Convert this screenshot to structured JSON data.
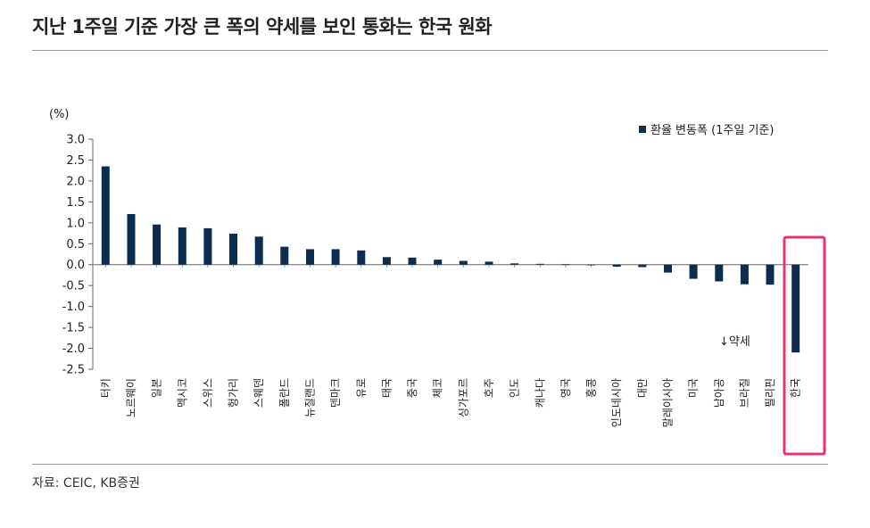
{
  "title": "지난 1주일 기준 가장 큰 폭의 약세를 보인 통화는 한국 원화",
  "source": "자료: CEIC, KB증권",
  "colors": {
    "bar": "#0b2d4f",
    "highlight": "#e8336e",
    "axis": "#666666"
  },
  "chart_data": {
    "type": "bar",
    "ylabel": "(%)",
    "ylim": [
      -2.5,
      3.0
    ],
    "yticks": [
      "3.0",
      "2.5",
      "2.0",
      "1.5",
      "1.0",
      "0.5",
      "0.0",
      "-0.5",
      "-1.0",
      "-1.5",
      "-2.0",
      "-2.5"
    ],
    "ytick_values": [
      3.0,
      2.5,
      2.0,
      1.5,
      1.0,
      0.5,
      0.0,
      -0.5,
      -1.0,
      -1.5,
      -2.0,
      -2.5
    ],
    "legend": "환율 변동폭 (1주일 기준)",
    "legend_position": "top-right",
    "annotation": "↓약세",
    "highlight_category": "한국",
    "categories": [
      "터키",
      "노르웨이",
      "일본",
      "멕시코",
      "스위스",
      "헝가리",
      "스웨덴",
      "폴란드",
      "뉴질랜드",
      "덴마크",
      "유로",
      "태국",
      "중국",
      "체코",
      "싱가포르",
      "호주",
      "인도",
      "캐나다",
      "영국",
      "홍콩",
      "인도네시아",
      "대만",
      "말레이시아",
      "미국",
      "남아공",
      "브라질",
      "필리핀",
      "한국"
    ],
    "series": [
      {
        "name": "환율 변동폭 (1주일 기준)",
        "values": [
          2.35,
          1.21,
          0.96,
          0.89,
          0.87,
          0.74,
          0.67,
          0.43,
          0.37,
          0.37,
          0.34,
          0.18,
          0.17,
          0.12,
          0.09,
          0.07,
          0.03,
          0.02,
          0.01,
          0.0,
          -0.05,
          -0.06,
          -0.19,
          -0.34,
          -0.4,
          -0.47,
          -0.48,
          -2.1
        ]
      }
    ]
  }
}
